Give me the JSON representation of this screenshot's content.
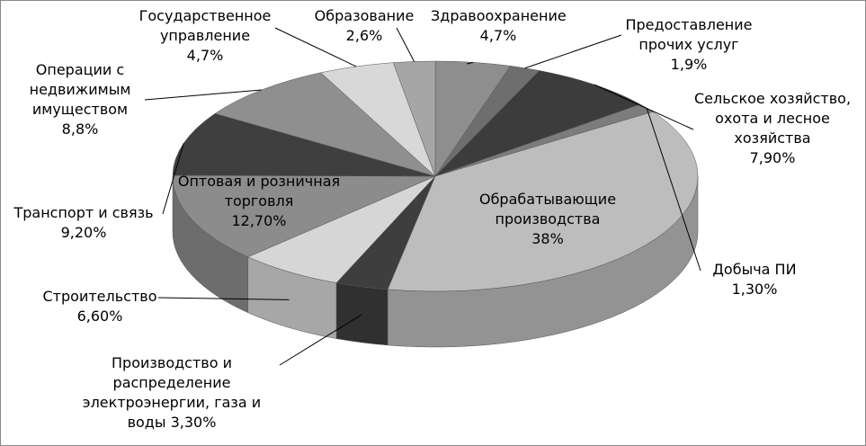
{
  "chart_data": {
    "type": "pie3d",
    "categories": [
      "Здравоохранение",
      "Предоставление прочих услуг",
      "Сельское хозяйство, охота и лесное хозяйства",
      "Добыча ПИ",
      "Обрабатывающие производства",
      "Производство и распределение электроэнергии, газа и воды",
      "Строительство",
      "Оптовая и розничная торговля",
      "Транспорт и связь",
      "Операции с недвижимым имуществом",
      "Государственное управление",
      "Образование"
    ],
    "values": [
      4.7,
      1.9,
      7.9,
      1.3,
      38,
      3.3,
      6.6,
      12.7,
      9.2,
      8.8,
      4.7,
      2.6
    ],
    "value_labels": [
      "4,7%",
      "1,9%",
      "7,90%",
      "1,30%",
      "38%",
      "3,30%",
      "6,60%",
      "12,70%",
      "9,20%",
      "8,8%",
      "4,7%",
      "2,6%"
    ],
    "colors": [
      "#8e8e8e",
      "#6e6e6e",
      "#3c3c3c",
      "#7c7c7c",
      "#bdbdbd",
      "#3e3e3e",
      "#d6d6d6",
      "#8c8c8c",
      "#3f3f3f",
      "#8f8f8f",
      "#d8d8d8",
      "#a6a6a6"
    ]
  }
}
